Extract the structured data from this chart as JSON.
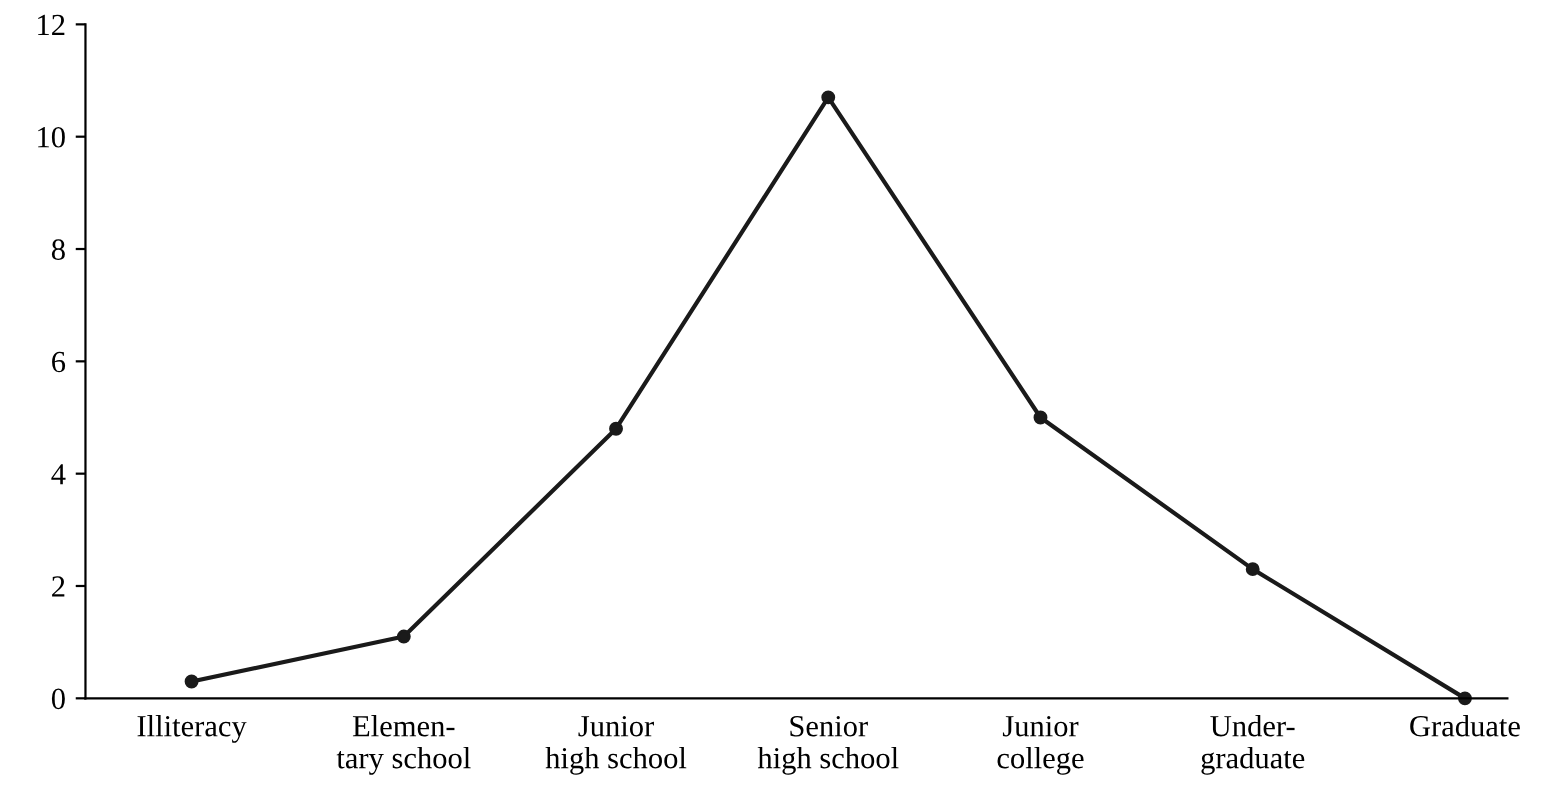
{
  "chart_data": {
    "type": "line",
    "categories": [
      "Illiteracy",
      "Elemen-\ntary school",
      "Junior\nhigh school",
      "Senior\nhigh school",
      "Junior\ncollege",
      "Under-\ngraduate",
      "Graduate"
    ],
    "values": [
      0.3,
      1.1,
      4.8,
      10.7,
      5.0,
      2.3,
      0
    ],
    "color": "#1a1a1a",
    "marker": "circle",
    "line_style": "solid",
    "ylim": [
      0,
      12
    ],
    "yticks": [
      0,
      2,
      4,
      6,
      8,
      10,
      12
    ],
    "grid": false,
    "legend": false
  }
}
